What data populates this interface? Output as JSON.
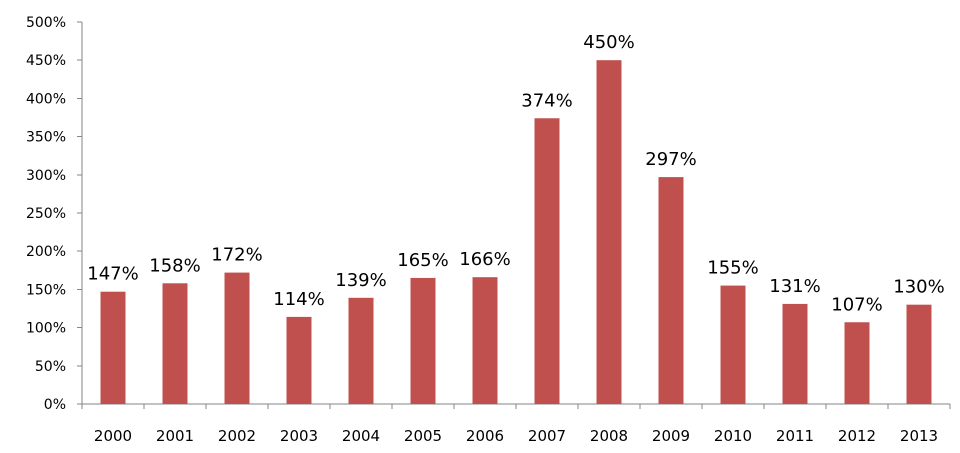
{
  "chart_data": {
    "type": "bar",
    "categories": [
      "2000",
      "2001",
      "2002",
      "2003",
      "2004",
      "2005",
      "2006",
      "2007",
      "2008",
      "2009",
      "2010",
      "2011",
      "2012",
      "2013"
    ],
    "values": [
      147,
      158,
      172,
      114,
      139,
      165,
      166,
      374,
      450,
      297,
      155,
      131,
      107,
      130
    ],
    "data_labels": [
      "147%",
      "158%",
      "172%",
      "114%",
      "139%",
      "165%",
      "166%",
      "374%",
      "450%",
      "297%",
      "155%",
      "131%",
      "107%",
      "130%"
    ],
    "y_ticks": [
      "0%",
      "50%",
      "100%",
      "150%",
      "200%",
      "250%",
      "300%",
      "350%",
      "400%",
      "450%",
      "500%"
    ],
    "ylim": [
      0,
      500
    ],
    "title": "",
    "xlabel": "",
    "ylabel": "",
    "grid": false,
    "legend": false,
    "bar_color": "#C0504D",
    "axis_color": "#868686"
  }
}
